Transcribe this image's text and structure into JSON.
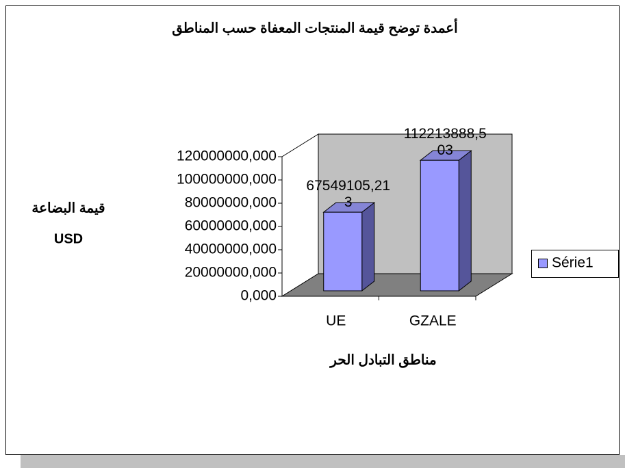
{
  "chart_data": {
    "type": "bar3d",
    "title": "أعمدة توضح قيمة المنتجات المعفاة حسب المناطق",
    "y_label": [
      "قيمة البضاعة",
      "USD"
    ],
    "x_label": "مناطق التبادل الحر",
    "categories": [
      "UE",
      "GZALE"
    ],
    "series": [
      {
        "name": "Série1",
        "color": "#9999ff",
        "values": [
          67549105.213,
          112213888.503
        ],
        "value_labels": [
          "67549105,213",
          "112213888,503"
        ]
      }
    ],
    "ylim": [
      0,
      120000000
    ],
    "yticks": [
      {
        "value": 0,
        "label": "0,000"
      },
      {
        "value": 20000000,
        "label": "20000000,000"
      },
      {
        "value": 40000000,
        "label": "40000000,000"
      },
      {
        "value": 60000000,
        "label": "60000000,000"
      },
      {
        "value": 80000000,
        "label": "80000000,000"
      },
      {
        "value": 100000000,
        "label": "100000000,000"
      },
      {
        "value": 120000000,
        "label": "120000000,000"
      }
    ],
    "legend": "right"
  }
}
